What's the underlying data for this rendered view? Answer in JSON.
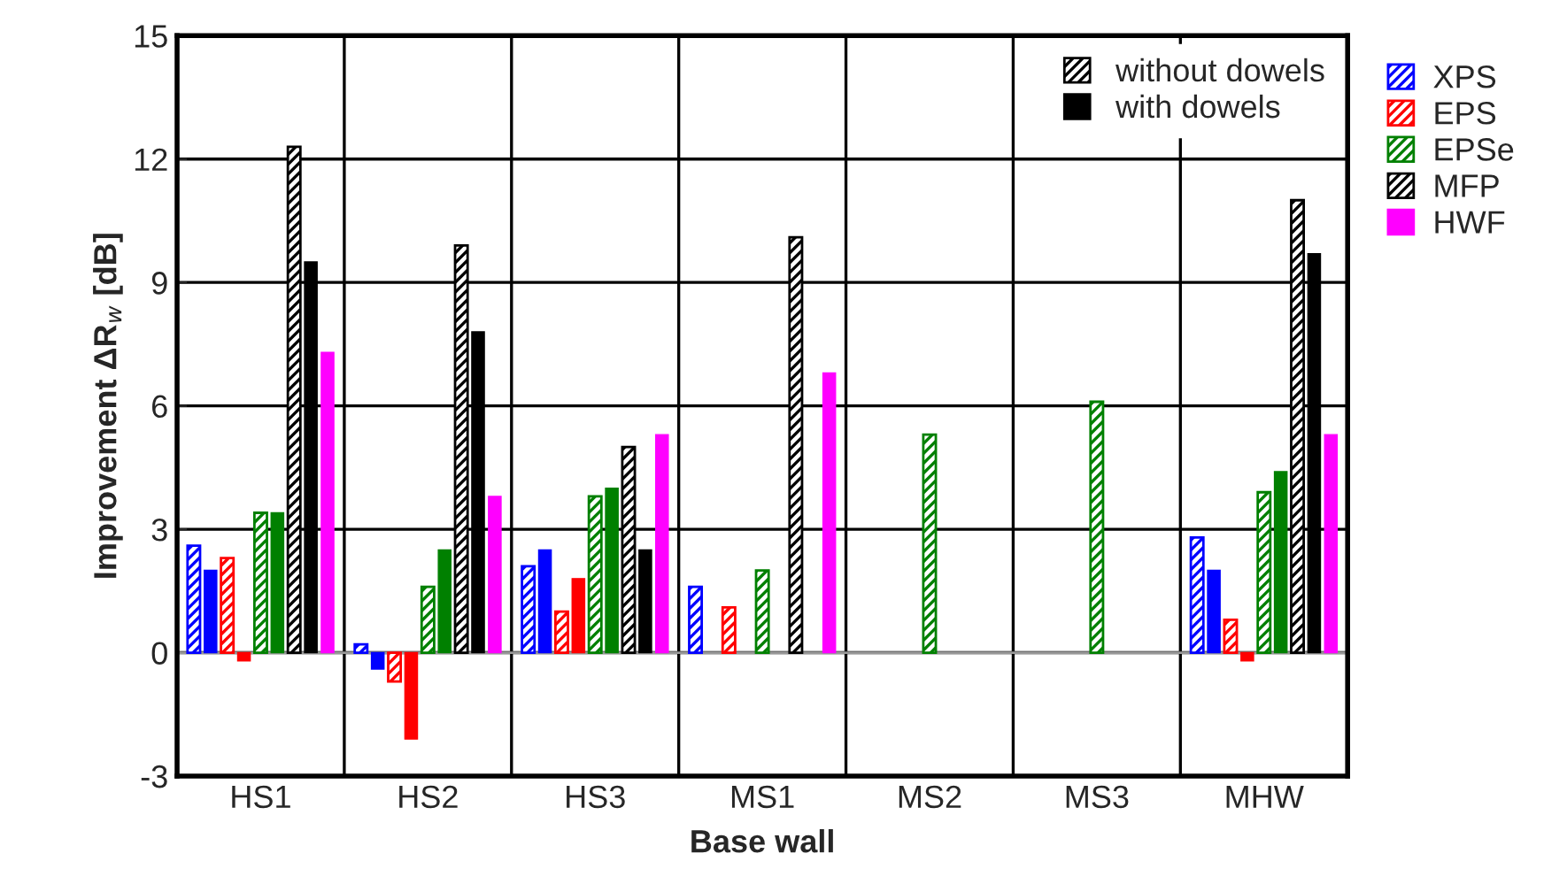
{
  "chart_data": {
    "type": "bar",
    "xlabel": "Base wall",
    "ylabel": "Improvement ΔR$_{w}$ [dB]",
    "categories": [
      "HS1",
      "HS2",
      "HS3",
      "MS1",
      "MS2",
      "MS3",
      "MHW"
    ],
    "series": [
      {
        "name": "XPS",
        "color": "#0000ff",
        "values": [
          2.6,
          0.2,
          2.1,
          1.6,
          null,
          null,
          2.8
        ]
      },
      {
        "name": null,
        "color": "#0000ff",
        "values": [
          2.0,
          -0.4,
          2.5,
          null,
          null,
          null,
          2.0
        ]
      },
      {
        "name": "EPS",
        "color": "#ff0000",
        "values": [
          2.3,
          -0.7,
          1.0,
          1.1,
          null,
          null,
          0.8
        ]
      },
      {
        "name": null,
        "color": "#ff0000",
        "values": [
          -0.2,
          -2.1,
          1.8,
          null,
          null,
          null,
          -0.2
        ]
      },
      {
        "name": "EPSe",
        "color": "#008000",
        "values": [
          3.4,
          1.6,
          3.8,
          2.0,
          5.3,
          6.1,
          3.9
        ]
      },
      {
        "name": null,
        "color": "#008000",
        "values": [
          3.4,
          2.5,
          4.0,
          null,
          null,
          null,
          4.4
        ]
      },
      {
        "name": "MFP",
        "color": "#000000",
        "values": [
          12.3,
          9.9,
          5.0,
          10.1,
          null,
          null,
          11.0
        ]
      },
      {
        "name": null,
        "color": "#000000",
        "values": [
          9.5,
          7.8,
          2.5,
          null,
          null,
          null,
          9.7
        ]
      },
      {
        "name": "HWF",
        "color": "#ff00ff",
        "values": [
          7.3,
          3.8,
          5.3,
          6.8,
          null,
          null,
          5.3
        ]
      }
    ],
    "annotations": [
      "without dowels",
      "with dowels"
    ],
    "ylim": [
      -3,
      15
    ],
    "yticks": [
      -3,
      0,
      3,
      6,
      9,
      12,
      15
    ],
    "grid": true,
    "legend": "right"
  }
}
